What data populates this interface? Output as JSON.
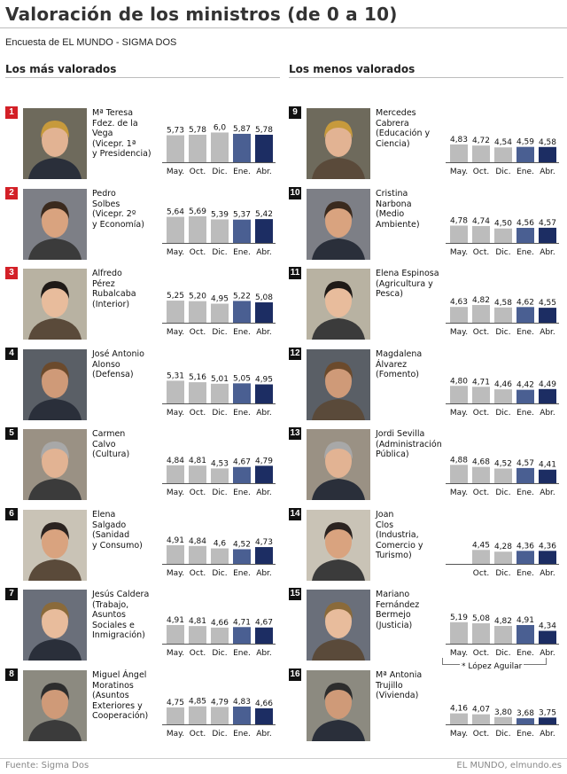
{
  "header": {
    "title": "Valoración de los ministros (de 0 a 10)",
    "subtitle": "Encuesta de EL MUNDO - SIGMA DOS"
  },
  "sections": {
    "left_title": "Los más valorados",
    "right_title": "Los menos valorados"
  },
  "footer": {
    "source": "Fuente: Sigma Dos",
    "credit": "EL MUNDO, elmundo.es"
  },
  "note": "* López Aguilar",
  "colors": {
    "past_bar": "#bcbcbc",
    "ene_bar": "#4a5f92",
    "abr_bar": "#1c2d63",
    "rank_top": "#d32027",
    "rank_other": "#111111"
  },
  "chart_data": {
    "type": "bar",
    "ylim": [
      0,
      10
    ],
    "categories": [
      "May.",
      "Oct.",
      "Dic.",
      "Ene.",
      "Abr."
    ],
    "ministers": [
      {
        "rank": "1",
        "name": "Mª Teresa\nFdez. de la\nVega\n(Vicepr. 1ª\ny Presidencia)",
        "values": [
          5.73,
          5.78,
          6.0,
          5.87,
          5.78
        ],
        "labels": [
          "5,73",
          "5,78",
          "6,0",
          "5,87",
          "5,78"
        ]
      },
      {
        "rank": "2",
        "name": "Pedro\nSolbes\n(Vicepr. 2º\ny Economía)",
        "values": [
          5.64,
          5.69,
          5.39,
          5.37,
          5.42
        ],
        "labels": [
          "5,64",
          "5,69",
          "5,39",
          "5,37",
          "5,42"
        ]
      },
      {
        "rank": "3",
        "name": "Alfredo\nPérez\nRubalcaba\n(Interior)",
        "values": [
          5.25,
          5.2,
          4.95,
          5.22,
          5.08
        ],
        "labels": [
          "5,25",
          "5,20",
          "4,95",
          "5,22",
          "5,08"
        ]
      },
      {
        "rank": "4",
        "name": "José Antonio\nAlonso\n(Defensa)",
        "values": [
          5.31,
          5.16,
          5.01,
          5.05,
          4.95
        ],
        "labels": [
          "5,31",
          "5,16",
          "5,01",
          "5,05",
          "4,95"
        ]
      },
      {
        "rank": "5",
        "name": "Carmen\nCalvo\n(Cultura)",
        "values": [
          4.84,
          4.81,
          4.53,
          4.67,
          4.79
        ],
        "labels": [
          "4,84",
          "4,81",
          "4,53",
          "4,67",
          "4,79"
        ]
      },
      {
        "rank": "6",
        "name": "Elena\nSalgado\n(Sanidad\ny Consumo)",
        "values": [
          4.91,
          4.84,
          4.6,
          4.52,
          4.73
        ],
        "labels": [
          "4,91",
          "4,84",
          "4,6",
          "4,52",
          "4,73"
        ]
      },
      {
        "rank": "7",
        "name": "Jesús Caldera\n(Trabajo,\nAsuntos\nSociales e\nInmigración)",
        "values": [
          4.91,
          4.81,
          4.66,
          4.71,
          4.67
        ],
        "labels": [
          "4,91",
          "4,81",
          "4,66",
          "4,71",
          "4,67"
        ]
      },
      {
        "rank": "8",
        "name": "Miguel Ángel\nMoratinos\n(Asuntos\nExteriores y\nCooperación)",
        "values": [
          4.75,
          4.85,
          4.79,
          4.83,
          4.66
        ],
        "labels": [
          "4,75",
          "4,85",
          "4,79",
          "4,83",
          "4,66"
        ]
      },
      {
        "rank": "9",
        "name": "Mercedes\nCabrera\n(Educación y\nCiencia)",
        "values": [
          4.83,
          4.72,
          4.54,
          4.59,
          4.58
        ],
        "labels": [
          "4,83",
          "4,72",
          "4,54",
          "4,59",
          "4,58"
        ]
      },
      {
        "rank": "10",
        "name": "Cristina\nNarbona\n(Medio\nAmbiente)",
        "values": [
          4.78,
          4.74,
          4.5,
          4.56,
          4.57
        ],
        "labels": [
          "4,78",
          "4,74",
          "4,50",
          "4,56",
          "4,57"
        ]
      },
      {
        "rank": "11",
        "name": "Elena Espinosa\n(Agricultura y\nPesca)",
        "values": [
          4.63,
          4.82,
          4.58,
          4.62,
          4.55
        ],
        "labels": [
          "4,63",
          "4,82",
          "4,58",
          "4,62",
          "4,55"
        ]
      },
      {
        "rank": "12",
        "name": "Magdalena\nÁlvarez\n(Fomento)",
        "values": [
          4.8,
          4.71,
          4.46,
          4.42,
          4.49
        ],
        "labels": [
          "4,80",
          "4,71",
          "4,46",
          "4,42",
          "4,49"
        ]
      },
      {
        "rank": "13",
        "name": "Jordi Sevilla\n(Administración\nPública)",
        "values": [
          4.88,
          4.68,
          4.52,
          4.57,
          4.41
        ],
        "labels": [
          "4,88",
          "4,68",
          "4,52",
          "4,57",
          "4,41"
        ]
      },
      {
        "rank": "14",
        "name": "Joan\nClos\n(Industria,\nComercio y\nTurismo)",
        "values": [
          null,
          4.45,
          4.28,
          4.36,
          4.36
        ],
        "labels": [
          "",
          "4,45",
          "4,28",
          "4,36",
          "4,36"
        ]
      },
      {
        "rank": "15",
        "name": "Mariano\nFernández\nBermejo\n(Justicia)",
        "values": [
          5.19,
          5.08,
          4.82,
          4.91,
          4.34
        ],
        "labels": [
          "5,19",
          "5,08",
          "4,82",
          "4,91",
          "4,34"
        ]
      },
      {
        "rank": "16",
        "name": "Mª Antonia\nTrujillo\n(Vivienda)",
        "values": [
          4.16,
          4.07,
          3.8,
          3.68,
          3.75
        ],
        "labels": [
          "4,16",
          "4,07",
          "3,80",
          "3,68",
          "3,75"
        ]
      }
    ]
  }
}
